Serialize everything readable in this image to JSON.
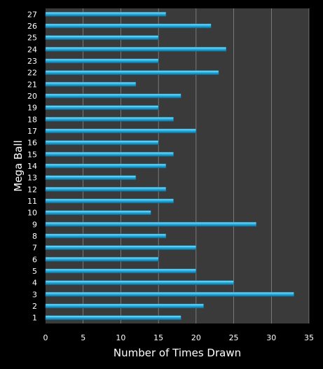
{
  "chart_data": {
    "type": "bar",
    "orientation": "horizontal",
    "title": "",
    "xlabel": "Number of Times Drawn",
    "ylabel": "Mega Ball",
    "categories": [
      "1",
      "2",
      "3",
      "4",
      "5",
      "6",
      "7",
      "8",
      "9",
      "10",
      "11",
      "12",
      "13",
      "14",
      "15",
      "16",
      "17",
      "18",
      "19",
      "20",
      "21",
      "22",
      "23",
      "24",
      "25",
      "26",
      "27"
    ],
    "values": [
      18,
      21,
      33,
      25,
      20,
      15,
      20,
      16,
      28,
      14,
      17,
      16,
      12,
      16,
      17,
      15,
      20,
      17,
      15,
      18,
      12,
      23,
      15,
      24,
      15,
      22,
      16
    ],
    "xlim": [
      0,
      35
    ],
    "xticks": [
      "0",
      "5",
      "10",
      "15",
      "20",
      "25",
      "30",
      "35"
    ],
    "grid": "vertical",
    "legend": "none",
    "colors": {
      "page_background": "#000000",
      "plot_background": "#3a3a3a",
      "bar_fill": "#29b6e8",
      "bar_highlight": "#8fe0fa",
      "bar_shadow": "#0e6f96",
      "grid": "#d0d0d0",
      "text": "#ffffff"
    }
  }
}
